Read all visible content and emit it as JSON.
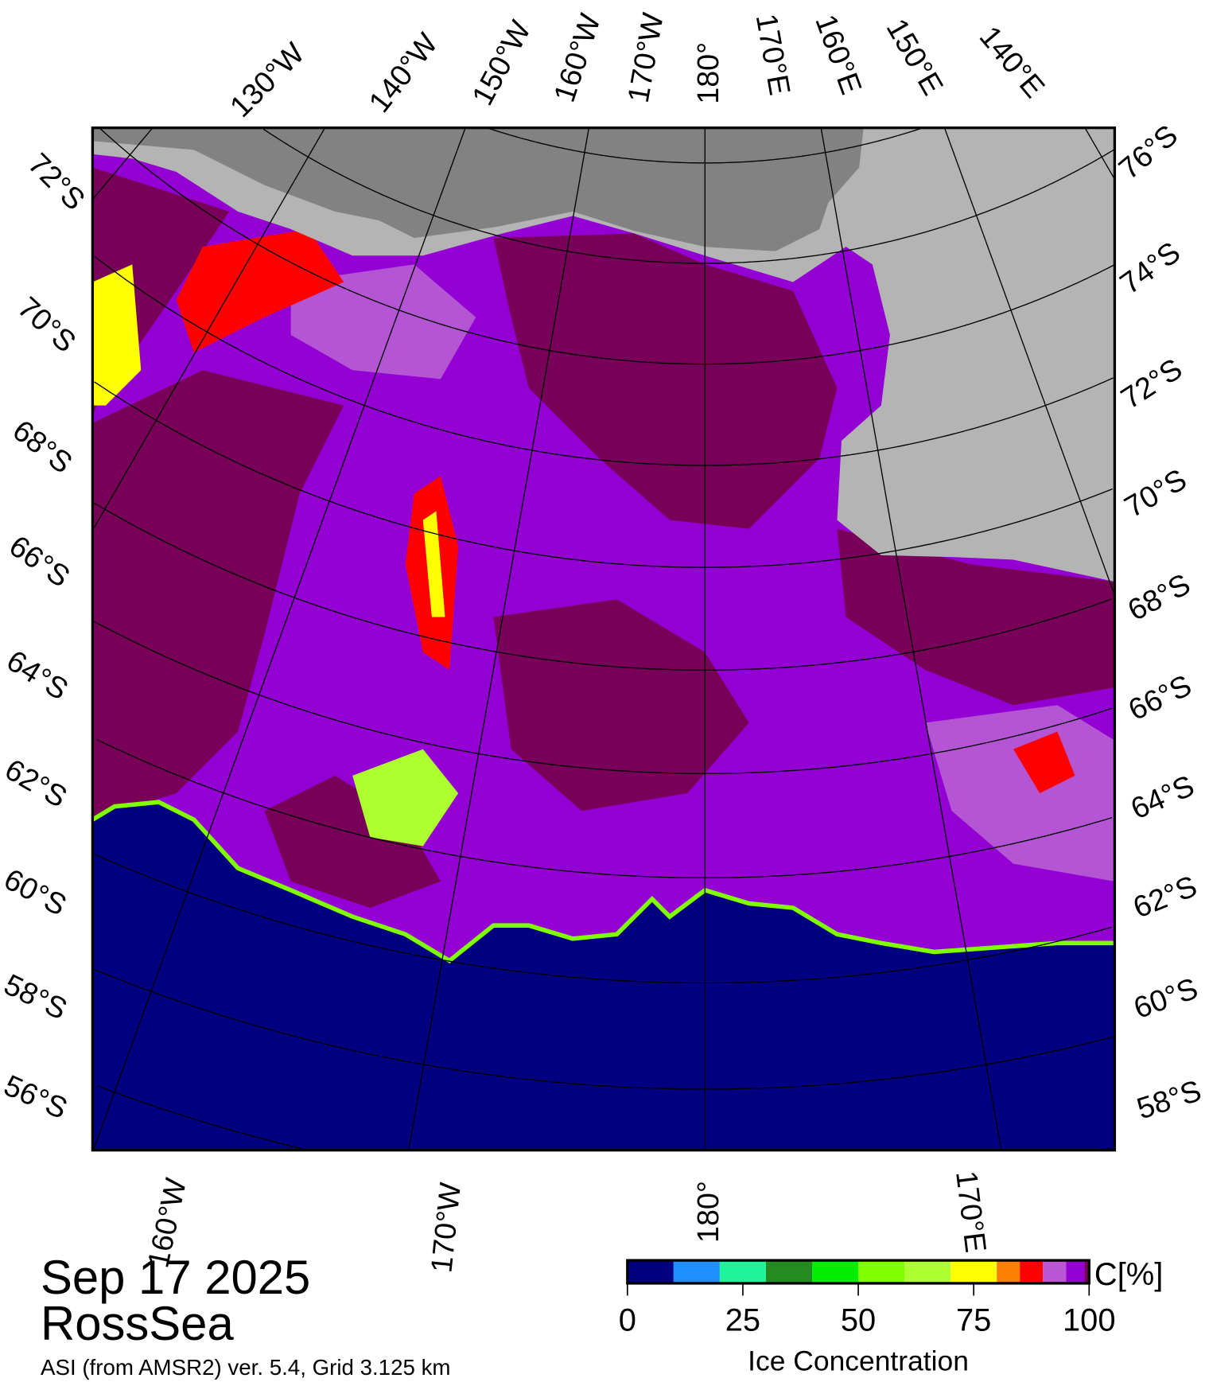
{
  "title": {
    "date": "Sep 17 2025",
    "region": "RossSea",
    "source": "ASI (from AMSR2) ver. 5.4,  Grid 3.125 km"
  },
  "map": {
    "colors": {
      "land": "#b4b4b4",
      "ice_shelf": "#828282",
      "ocean": "#000080",
      "ice_full": "#780058",
      "ice_high": "#9400d3",
      "ice_mid": "#b455d3"
    },
    "top_labels": [
      "130°W",
      "140°W",
      "150°W",
      "160°W",
      "170°W",
      "180°",
      "170°E",
      "160°E",
      "150°E",
      "140°E"
    ],
    "left_labels": [
      "72°S",
      "70°S",
      "68°S",
      "66°S",
      "64°S",
      "62°S",
      "60°S",
      "58°S",
      "56°S"
    ],
    "right_labels": [
      "76°S",
      "74°S",
      "72°S",
      "70°S",
      "68°S",
      "66°S",
      "64°S",
      "62°S",
      "60°S",
      "58°S"
    ],
    "bottom_labels": [
      "160°W",
      "170°W",
      "180°",
      "170°E"
    ]
  },
  "colorbar": {
    "unit": "C[%]",
    "label": "Ice Concentration",
    "ticks": [
      "0",
      "25",
      "50",
      "75",
      "100"
    ],
    "range": [
      0,
      100
    ],
    "segments": [
      {
        "from": 0,
        "to": 10,
        "color": "#000080"
      },
      {
        "from": 10,
        "to": 20,
        "color": "#1e90ff"
      },
      {
        "from": 20,
        "to": 30,
        "color": "#1ef59b"
      },
      {
        "from": 30,
        "to": 40,
        "color": "#228b22"
      },
      {
        "from": 40,
        "to": 50,
        "color": "#00ee00"
      },
      {
        "from": 50,
        "to": 60,
        "color": "#7fff00"
      },
      {
        "from": 60,
        "to": 70,
        "color": "#adff2f"
      },
      {
        "from": 70,
        "to": 80,
        "color": "#ffff00"
      },
      {
        "from": 80,
        "to": 85,
        "color": "#ff7f00"
      },
      {
        "from": 85,
        "to": 90,
        "color": "#ff0000"
      },
      {
        "from": 90,
        "to": 95,
        "color": "#ba55d3"
      },
      {
        "from": 95,
        "to": 99,
        "color": "#9400d3"
      },
      {
        "from": 99,
        "to": 100,
        "color": "#780058"
      }
    ]
  }
}
